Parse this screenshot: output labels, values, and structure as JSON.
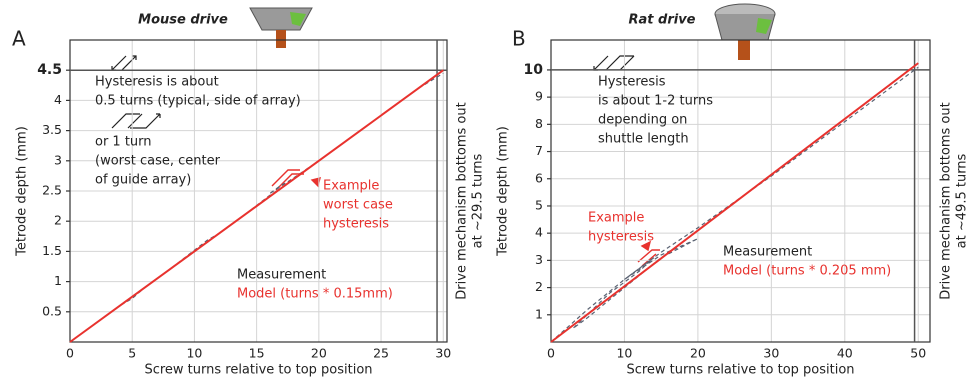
{
  "chart_data": [
    {
      "type": "line",
      "panel": "A",
      "title": "Mouse drive",
      "x_label": "Screw turns relative to top position",
      "y_label": "Tetrode depth (mm)",
      "side_label": [
        "Drive mechanism bottoms out",
        "at ~29.5 turns"
      ],
      "xlim": [
        0,
        30.3
      ],
      "ylim": [
        0,
        5
      ],
      "xticks": [
        0,
        5,
        10,
        15,
        20,
        25,
        30
      ],
      "yticks": [
        0.5,
        1,
        1.5,
        2,
        2.5,
        3,
        3.5,
        4,
        4.5
      ],
      "grid": true,
      "reference_lines": {
        "x": 29.5,
        "y": 4.5
      },
      "series": [
        {
          "name": "Measurement",
          "color": "#5a6272",
          "dash": true,
          "x": [
            0,
            2,
            4,
            5,
            6,
            8,
            10,
            11,
            12,
            14,
            16,
            17,
            18,
            17,
            16,
            18,
            20,
            22,
            24,
            26,
            28,
            30
          ],
          "values": [
            0,
            0.3,
            0.6,
            0.72,
            0.9,
            1.2,
            1.52,
            1.68,
            1.8,
            2.1,
            2.42,
            2.55,
            2.7,
            2.6,
            2.45,
            2.72,
            3.0,
            3.3,
            3.6,
            3.9,
            4.2,
            4.45
          ]
        },
        {
          "name": "Model (turns * 0.15mm)",
          "color": "#e8322e",
          "dash": false,
          "x": [
            0,
            30
          ],
          "values": [
            0,
            4.5
          ]
        }
      ],
      "annotations": [
        {
          "lines": [
            "Hysteresis is about",
            "0.5 turns (typical, side of array)"
          ],
          "color": "#222222"
        },
        {
          "lines": [
            "or 1 turn",
            "(worst case, center",
            "of guide array)"
          ],
          "color": "#222222"
        },
        {
          "lines": [
            "Example",
            "worst case",
            "hysteresis"
          ],
          "color": "#e8322e"
        }
      ]
    },
    {
      "type": "line",
      "panel": "B",
      "title": "Rat drive",
      "x_label": "Screw turns relative to top position",
      "y_label": "Tetrode depth (mm)",
      "side_label": [
        "Drive mechanism bottoms out",
        "at ~49.5 turns"
      ],
      "xlim": [
        0,
        51.6
      ],
      "ylim": [
        0,
        11.1
      ],
      "xticks": [
        0,
        10,
        20,
        30,
        40,
        50
      ],
      "yticks": [
        1,
        2,
        3,
        4,
        5,
        6,
        7,
        8,
        9,
        10
      ],
      "grid": true,
      "reference_lines": {
        "x": 49.5,
        "y": 10
      },
      "series": [
        {
          "name": "Measurement",
          "color": "#5a6272",
          "dash": true,
          "x": [
            0,
            5,
            10,
            15,
            20,
            15,
            10,
            5,
            3,
            8,
            12,
            14,
            12,
            10,
            15,
            20,
            30,
            40,
            50
          ],
          "values": [
            0,
            1.2,
            2.3,
            3.2,
            3.8,
            3.1,
            2.0,
            0.9,
            0.5,
            1.8,
            2.6,
            3.1,
            2.7,
            2.3,
            3.3,
            4.2,
            6.1,
            8.1,
            10.1
          ]
        },
        {
          "name": "Model (turns * 0.205 mm)",
          "color": "#e8322e",
          "dash": false,
          "x": [
            0,
            50
          ],
          "values": [
            0,
            10.25
          ]
        }
      ],
      "annotations": [
        {
          "lines": [
            "Hysteresis",
            "is about 1-2 turns",
            "depending on",
            "shuttle  length"
          ],
          "color": "#222222"
        },
        {
          "lines": [
            "Example",
            "hysteresis"
          ],
          "color": "#e8322e"
        }
      ]
    }
  ]
}
